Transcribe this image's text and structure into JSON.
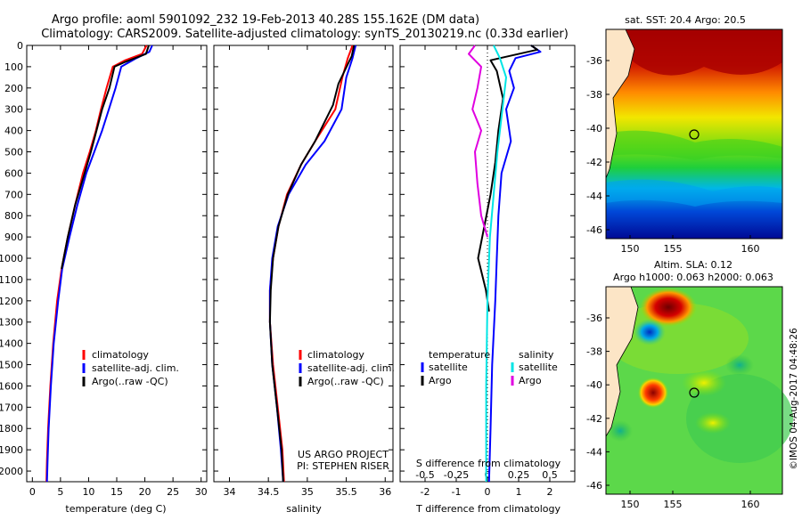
{
  "header": {
    "line1": "Argo profile: aoml 5901092_232 19-Feb-2013 40.28S 155.162E (DM data)",
    "line2": "Climatology: CARS2009. Satellite-adjusted climatology: synTS_20130219.nc (0.33d earlier)"
  },
  "colors": {
    "climatology": "#ff0000",
    "satellite": "#0000ff",
    "argo": "#000000",
    "sal_satellite": "#00e5e5",
    "sal_argo": "#e000e0"
  },
  "chart_data": [
    {
      "id": "temperature",
      "type": "line",
      "xlabel": "temperature (deg C)",
      "xlim": [
        -1,
        31
      ],
      "xticks": [
        0,
        5,
        10,
        15,
        20,
        25,
        30
      ],
      "ylim": [
        0,
        2050
      ],
      "yticks": [
        0,
        100,
        200,
        300,
        400,
        500,
        600,
        700,
        800,
        900,
        1000,
        1100,
        1200,
        1300,
        1400,
        1500,
        1600,
        1700,
        1800,
        1900,
        2000
      ],
      "legend": [
        "climatology",
        "satellite-adj. clim.",
        "Argo(..raw -QC)"
      ],
      "series": [
        {
          "name": "climatology",
          "color": "#ff0000",
          "points": [
            [
              20.3,
              0
            ],
            [
              19.5,
              40
            ],
            [
              16.5,
              70
            ],
            [
              14.3,
              100
            ],
            [
              13.2,
              200
            ],
            [
              12.2,
              300
            ],
            [
              11.3,
              400
            ],
            [
              10.2,
              500
            ],
            [
              9.0,
              600
            ],
            [
              7.6,
              750
            ],
            [
              6.3,
              900
            ],
            [
              5.2,
              1050
            ],
            [
              4.4,
              1200
            ],
            [
              3.7,
              1400
            ],
            [
              3.2,
              1600
            ],
            [
              2.8,
              1800
            ],
            [
              2.6,
              1950
            ],
            [
              2.5,
              2050
            ]
          ]
        },
        {
          "name": "satellite-adj. clim.",
          "color": "#0000ff",
          "points": [
            [
              21.3,
              0
            ],
            [
              20.8,
              30
            ],
            [
              18.5,
              60
            ],
            [
              15.8,
              100
            ],
            [
              14.8,
              200
            ],
            [
              13.6,
              300
            ],
            [
              12.4,
              400
            ],
            [
              11.0,
              500
            ],
            [
              9.6,
              600
            ],
            [
              8.0,
              750
            ],
            [
              6.6,
              900
            ],
            [
              5.3,
              1050
            ],
            [
              4.6,
              1200
            ],
            [
              3.8,
              1400
            ],
            [
              3.3,
              1600
            ],
            [
              2.9,
              1800
            ],
            [
              2.7,
              1950
            ],
            [
              2.6,
              2050
            ]
          ]
        },
        {
          "name": "Argo(..raw -QC)",
          "color": "#000000",
          "points": [
            [
              20.7,
              0
            ],
            [
              20.2,
              40
            ],
            [
              16.3,
              80
            ],
            [
              14.6,
              100
            ],
            [
              13.7,
              200
            ],
            [
              12.4,
              300
            ],
            [
              11.4,
              400
            ],
            [
              10.4,
              500
            ],
            [
              9.3,
              600
            ],
            [
              7.6,
              750
            ],
            [
              6.3,
              900
            ],
            [
              5.2,
              1050
            ]
          ]
        }
      ]
    },
    {
      "id": "salinity",
      "type": "line",
      "xlabel": "salinity",
      "xlim": [
        33.8,
        36.1
      ],
      "xticks": [
        34,
        34.5,
        35,
        35.5,
        36
      ],
      "xtick_labels": [
        "34",
        "34.5",
        "35",
        "35.5",
        "36"
      ],
      "ylim": [
        0,
        2050
      ],
      "legend": [
        "climatology",
        "satellite-adj. clim.",
        "Argo(..raw -QC)"
      ],
      "annotation": [
        "US ARGO PROJECT",
        "PI: STEPHEN RISER"
      ],
      "series": [
        {
          "name": "climatology",
          "color": "#ff0000",
          "points": [
            [
              35.58,
              0
            ],
            [
              35.52,
              60
            ],
            [
              35.45,
              150
            ],
            [
              35.36,
              300
            ],
            [
              35.1,
              450
            ],
            [
              34.92,
              560
            ],
            [
              34.74,
              700
            ],
            [
              34.63,
              850
            ],
            [
              34.56,
              1000
            ],
            [
              34.52,
              1150
            ],
            [
              34.52,
              1300
            ],
            [
              34.56,
              1500
            ],
            [
              34.62,
              1700
            ],
            [
              34.68,
              1900
            ],
            [
              34.7,
              2050
            ]
          ]
        },
        {
          "name": "satellite-adj. clim.",
          "color": "#0000ff",
          "points": [
            [
              35.62,
              0
            ],
            [
              35.58,
              60
            ],
            [
              35.5,
              150
            ],
            [
              35.44,
              300
            ],
            [
              35.22,
              450
            ],
            [
              34.98,
              560
            ],
            [
              34.76,
              700
            ],
            [
              34.62,
              850
            ],
            [
              34.55,
              1000
            ],
            [
              34.52,
              1150
            ],
            [
              34.52,
              1300
            ],
            [
              34.55,
              1500
            ],
            [
              34.61,
              1700
            ],
            [
              34.66,
              1900
            ],
            [
              34.69,
              2050
            ]
          ]
        },
        {
          "name": "Argo(..raw -QC)",
          "color": "#000000",
          "points": [
            [
              35.6,
              0
            ],
            [
              35.57,
              50
            ],
            [
              35.4,
              180
            ],
            [
              35.33,
              280
            ],
            [
              35.1,
              450
            ],
            [
              34.92,
              560
            ],
            [
              34.75,
              700
            ],
            [
              34.63,
              850
            ],
            [
              34.56,
              1000
            ],
            [
              34.53,
              1150
            ],
            [
              34.52,
              1300
            ],
            [
              34.55,
              1500
            ],
            [
              34.61,
              1700
            ],
            [
              34.67,
              1900
            ],
            [
              34.69,
              2050
            ]
          ]
        }
      ]
    },
    {
      "id": "difference",
      "type": "line",
      "xlabel": "T difference from climatology",
      "xlabel_top": "S difference from climatology",
      "xlim": [
        -2.8,
        2.8
      ],
      "xticks": [
        -2,
        -1,
        0,
        1,
        2
      ],
      "sticks": [
        -0.5,
        -0.25,
        0,
        0.25,
        0.5
      ],
      "stick_labels": [
        "-0.5",
        "-0.25",
        "0",
        "0.25",
        "0.5"
      ],
      "ylim": [
        0,
        2050
      ],
      "legend_left": [
        "temperature",
        "satellite",
        "Argo"
      ],
      "legend_right": [
        "salinity",
        "satellite",
        "Argo"
      ],
      "series": [
        {
          "name": "T satellite",
          "color": "#0000ff",
          "points": [
            [
              1.4,
              0
            ],
            [
              1.7,
              30
            ],
            [
              0.9,
              60
            ],
            [
              0.7,
              120
            ],
            [
              0.85,
              200
            ],
            [
              0.6,
              300
            ],
            [
              0.75,
              450
            ],
            [
              0.45,
              600
            ],
            [
              0.35,
              800
            ],
            [
              0.3,
              1000
            ],
            [
              0.25,
              1200
            ],
            [
              0.15,
              1500
            ],
            [
              0.1,
              1800
            ],
            [
              0.05,
              2050
            ]
          ]
        },
        {
          "name": "T Argo",
          "color": "#000000",
          "points": [
            [
              1.4,
              0
            ],
            [
              1.6,
              20
            ],
            [
              0.1,
              70
            ],
            [
              0.3,
              120
            ],
            [
              0.5,
              250
            ],
            [
              0.35,
              400
            ],
            [
              0.25,
              550
            ],
            [
              0.1,
              700
            ],
            [
              -0.1,
              850
            ],
            [
              -0.3,
              1000
            ],
            [
              -0.05,
              1150
            ],
            [
              0.05,
              1250
            ]
          ]
        },
        {
          "name": "S satellite",
          "color": "#00e5e5",
          "points": [
            [
              0.05,
              0
            ],
            [
              0.1,
              60
            ],
            [
              0.15,
              150
            ],
            [
              0.12,
              300
            ],
            [
              0.08,
              500
            ],
            [
              0.05,
              700
            ],
            [
              0.02,
              900
            ],
            [
              0.0,
              1200
            ],
            [
              -0.01,
              1600
            ],
            [
              -0.01,
              2050
            ]
          ]
        },
        {
          "name": "S Argo",
          "color": "#e000e0",
          "points": [
            [
              -0.1,
              0
            ],
            [
              -0.15,
              40
            ],
            [
              -0.05,
              100
            ],
            [
              -0.08,
              200
            ],
            [
              -0.12,
              300
            ],
            [
              -0.05,
              400
            ],
            [
              -0.1,
              500
            ],
            [
              -0.08,
              650
            ],
            [
              -0.05,
              800
            ],
            [
              0.0,
              900
            ]
          ]
        }
      ]
    }
  ],
  "maps": {
    "sst_title": "sat. SST: 20.4  Argo: 20.5",
    "sla_title1": "Altim. SLA: 0.12",
    "sla_title2": "Argo h1000: 0.063 h2000: 0.063",
    "xticks": [
      "150",
      "155",
      "160"
    ],
    "yticks": [
      "-36",
      "-38",
      "-40",
      "-42",
      "-44",
      "-46"
    ],
    "credit": "©IMOS 04-Aug-2017 04:48:26"
  }
}
